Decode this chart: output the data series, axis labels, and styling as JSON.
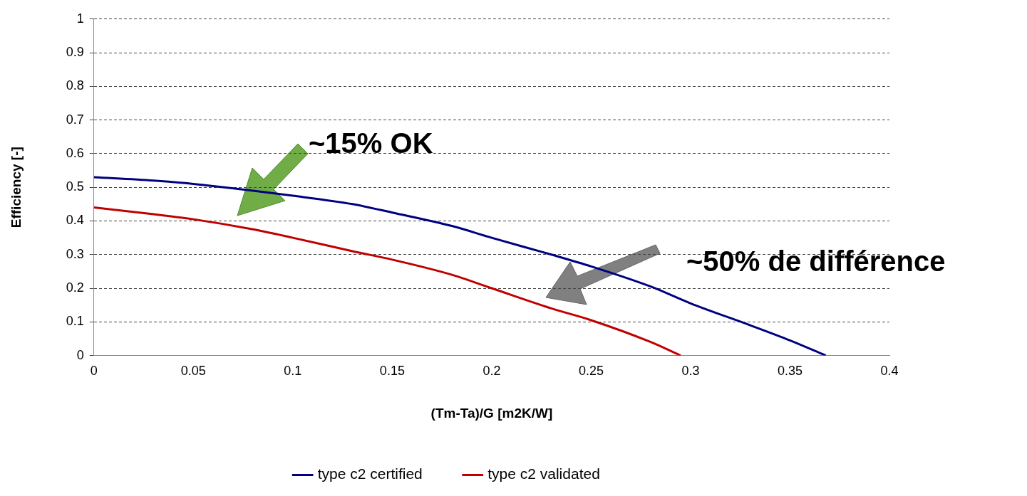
{
  "chart_data": {
    "type": "line",
    "xlabel": "(Tm-Ta)/G [m2K/W]",
    "ylabel": "Efficiency [-]",
    "xlim": [
      0,
      0.4
    ],
    "xticks": [
      0,
      0.05,
      0.1,
      0.15,
      0.2,
      0.25,
      0.3,
      0.35,
      0.4
    ],
    "ylim": [
      0,
      1
    ],
    "yticks": [
      0,
      0.1,
      0.2,
      0.3,
      0.4,
      0.5,
      0.6,
      0.7,
      0.8,
      0.9,
      1
    ],
    "grid": "y",
    "legend": "bottom",
    "marker": "none",
    "line_style": "solid",
    "series": [
      {
        "name": "type c2 certified",
        "color": "#000080",
        "x": [
          0,
          0.03,
          0.05,
          0.1,
          0.13,
          0.15,
          0.18,
          0.2,
          0.23,
          0.25,
          0.28,
          0.3,
          0.33,
          0.35,
          0.368
        ],
        "values": [
          0.53,
          0.52,
          0.51,
          0.475,
          0.45,
          0.425,
          0.385,
          0.35,
          0.3,
          0.265,
          0.205,
          0.155,
          0.09,
          0.045,
          0
        ]
      },
      {
        "name": "type c2 validated",
        "color": "#c00000",
        "x": [
          0,
          0.03,
          0.05,
          0.08,
          0.1,
          0.13,
          0.15,
          0.18,
          0.2,
          0.23,
          0.25,
          0.28,
          0.295
        ],
        "values": [
          0.44,
          0.42,
          0.405,
          0.375,
          0.35,
          0.31,
          0.285,
          0.24,
          0.2,
          0.14,
          0.105,
          0.04,
          0
        ]
      }
    ],
    "annotations": [
      "~15% OK",
      "~50% de différence"
    ]
  }
}
